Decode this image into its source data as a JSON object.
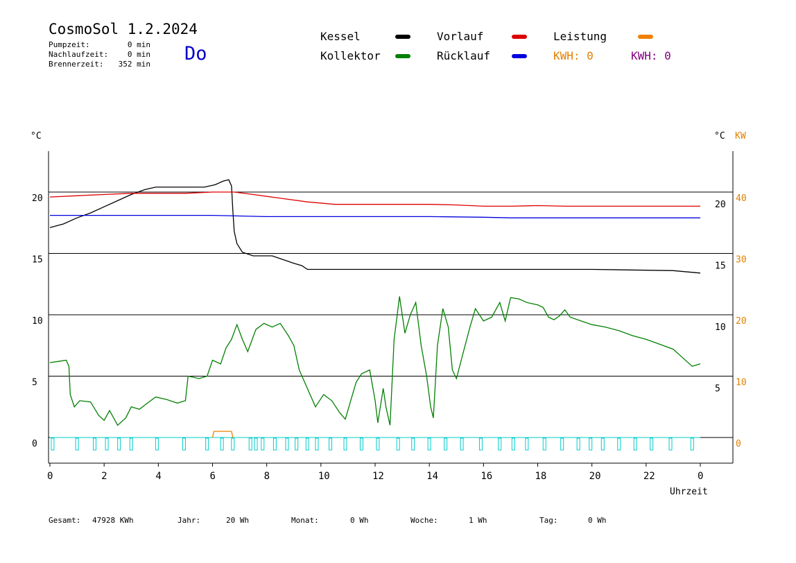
{
  "header": {
    "title": "CosmoSol 1.2.2024",
    "stats": [
      {
        "label": "Pumpzeit:",
        "value": "0 min"
      },
      {
        "label": "Nachlaufzeit:",
        "value": "0 min"
      },
      {
        "label": "Brennerzeit:",
        "value": "352 min"
      }
    ],
    "day": "Do"
  },
  "legend": {
    "items": [
      {
        "label": "Kessel",
        "color": "#000000"
      },
      {
        "label": "Vorlauf",
        "color": "#dd0000"
      },
      {
        "label": "Leistung",
        "color": "#f08000"
      },
      {
        "label": "Kollektor",
        "color": "#008000"
      },
      {
        "label": "Rücklauf",
        "color": "#0000dd"
      }
    ],
    "kwh1": "KWH: 0",
    "kwh1_color": "#e08000",
    "kwh2": "KWH: 0",
    "kwh2_color": "#800080"
  },
  "axes": {
    "left_unit": "°C",
    "right_unit": "°C",
    "right_unit2": "KW",
    "xlabel": "Uhrzeit"
  },
  "footer": [
    {
      "label": "Gesamt:",
      "value": "47928 KWh"
    },
    {
      "label": "Jahr:",
      "value": "20 Wh"
    },
    {
      "label": "Monat:",
      "value": "0 Wh"
    },
    {
      "label": "Woche:",
      "value": "1 Wh"
    },
    {
      "label": "Tag:",
      "value": "0 Wh"
    }
  ],
  "chart_data": {
    "type": "line",
    "xlabel": "Uhrzeit",
    "ylabel": "°C",
    "xlim": [
      0,
      24
    ],
    "ylim": [
      -2,
      23.5
    ],
    "y2lim": [
      -4,
      47
    ],
    "x_ticks": [
      "0",
      "2",
      "4",
      "6",
      "8",
      "10",
      "12",
      "14",
      "16",
      "18",
      "20",
      "22",
      "0"
    ],
    "y_ticks_left": [
      0,
      5,
      10,
      15,
      20
    ],
    "y_ticks_right_temp": [
      5,
      10,
      15,
      20
    ],
    "y_ticks_right_kw": [
      0,
      10,
      20,
      30,
      40
    ],
    "grid": "horizontal",
    "series": [
      {
        "name": "Kessel",
        "color": "#000000",
        "points": [
          [
            0,
            17.1
          ],
          [
            0.5,
            17.4
          ],
          [
            1,
            17.9
          ],
          [
            1.5,
            18.3
          ],
          [
            2,
            18.8
          ],
          [
            2.5,
            19.3
          ],
          [
            3,
            19.8
          ],
          [
            3.5,
            20.2
          ],
          [
            3.9,
            20.4
          ],
          [
            5.7,
            20.4
          ],
          [
            6.1,
            20.6
          ],
          [
            6.4,
            20.9
          ],
          [
            6.6,
            21.0
          ],
          [
            6.7,
            20.5
          ],
          [
            6.75,
            18.5
          ],
          [
            6.8,
            16.8
          ],
          [
            6.9,
            15.8
          ],
          [
            7.1,
            15.1
          ],
          [
            7.5,
            14.8
          ],
          [
            8.2,
            14.8
          ],
          [
            8.6,
            14.5
          ],
          [
            9,
            14.2
          ],
          [
            9.3,
            14.0
          ],
          [
            9.5,
            13.7
          ],
          [
            12,
            13.7
          ],
          [
            16,
            13.7
          ],
          [
            20,
            13.7
          ],
          [
            23,
            13.6
          ],
          [
            24,
            13.4
          ]
        ]
      },
      {
        "name": "Vorlauf",
        "color": "#dd0000",
        "points": [
          [
            0,
            19.6
          ],
          [
            1,
            19.7
          ],
          [
            2,
            19.8
          ],
          [
            3,
            19.9
          ],
          [
            4,
            19.9
          ],
          [
            5,
            19.9
          ],
          [
            6,
            20.0
          ],
          [
            6.8,
            20.0
          ],
          [
            7.5,
            19.8
          ],
          [
            8.5,
            19.5
          ],
          [
            9.5,
            19.2
          ],
          [
            10.5,
            19.0
          ],
          [
            12,
            19.0
          ],
          [
            14,
            19.0
          ],
          [
            15,
            18.95
          ],
          [
            16,
            18.85
          ],
          [
            17,
            18.85
          ],
          [
            18,
            18.9
          ],
          [
            19,
            18.85
          ],
          [
            20,
            18.85
          ],
          [
            22,
            18.85
          ],
          [
            24,
            18.85
          ]
        ]
      },
      {
        "name": "Rücklauf",
        "color": "#0000dd",
        "points": [
          [
            0,
            18.1
          ],
          [
            2,
            18.1
          ],
          [
            4,
            18.1
          ],
          [
            6,
            18.1
          ],
          [
            7,
            18.05
          ],
          [
            8,
            18.0
          ],
          [
            10,
            18.0
          ],
          [
            12,
            18.0
          ],
          [
            14,
            18.0
          ],
          [
            16,
            17.95
          ],
          [
            17,
            17.9
          ],
          [
            18,
            17.9
          ],
          [
            20,
            17.9
          ],
          [
            24,
            17.9
          ]
        ]
      },
      {
        "name": "Kollektor",
        "color": "#008000",
        "points": [
          [
            0,
            6.1
          ],
          [
            0.3,
            6.2
          ],
          [
            0.6,
            6.3
          ],
          [
            0.7,
            5.8
          ],
          [
            0.75,
            3.5
          ],
          [
            0.9,
            2.5
          ],
          [
            1.1,
            3.0
          ],
          [
            1.5,
            2.9
          ],
          [
            1.8,
            1.8
          ],
          [
            2.0,
            1.4
          ],
          [
            2.2,
            2.2
          ],
          [
            2.5,
            1.0
          ],
          [
            2.8,
            1.6
          ],
          [
            3.0,
            2.5
          ],
          [
            3.3,
            2.3
          ],
          [
            3.6,
            2.8
          ],
          [
            3.9,
            3.3
          ],
          [
            4.3,
            3.1
          ],
          [
            4.7,
            2.8
          ],
          [
            5.0,
            3.0
          ],
          [
            5.1,
            5.0
          ],
          [
            5.5,
            4.8
          ],
          [
            5.8,
            5.0
          ],
          [
            6.0,
            6.3
          ],
          [
            6.3,
            6.0
          ],
          [
            6.5,
            7.3
          ],
          [
            6.7,
            8.0
          ],
          [
            6.9,
            9.2
          ],
          [
            7.1,
            8.0
          ],
          [
            7.3,
            7.0
          ],
          [
            7.6,
            8.8
          ],
          [
            7.9,
            9.3
          ],
          [
            8.2,
            9.0
          ],
          [
            8.5,
            9.3
          ],
          [
            8.8,
            8.3
          ],
          [
            9.0,
            7.5
          ],
          [
            9.2,
            5.5
          ],
          [
            9.5,
            4.0
          ],
          [
            9.8,
            2.5
          ],
          [
            10.1,
            3.5
          ],
          [
            10.4,
            3.0
          ],
          [
            10.7,
            2.0
          ],
          [
            10.9,
            1.5
          ],
          [
            11.1,
            3.0
          ],
          [
            11.3,
            4.5
          ],
          [
            11.5,
            5.2
          ],
          [
            11.8,
            5.5
          ],
          [
            12.0,
            3.0
          ],
          [
            12.1,
            1.2
          ],
          [
            12.3,
            4.0
          ],
          [
            12.4,
            2.5
          ],
          [
            12.55,
            1.0
          ],
          [
            12.7,
            8.0
          ],
          [
            12.9,
            11.5
          ],
          [
            13.1,
            8.5
          ],
          [
            13.3,
            10.0
          ],
          [
            13.5,
            11.0
          ],
          [
            13.7,
            7.5
          ],
          [
            13.9,
            5.0
          ],
          [
            14.05,
            2.5
          ],
          [
            14.15,
            1.6
          ],
          [
            14.3,
            7.5
          ],
          [
            14.5,
            10.5
          ],
          [
            14.7,
            9.0
          ],
          [
            14.85,
            5.5
          ],
          [
            15.0,
            4.8
          ],
          [
            15.2,
            6.5
          ],
          [
            15.5,
            9.0
          ],
          [
            15.7,
            10.5
          ],
          [
            16.0,
            9.5
          ],
          [
            16.3,
            9.8
          ],
          [
            16.6,
            11.0
          ],
          [
            16.8,
            9.5
          ],
          [
            17.0,
            11.4
          ],
          [
            17.3,
            11.3
          ],
          [
            17.6,
            11.0
          ],
          [
            18.0,
            10.8
          ],
          [
            18.2,
            10.6
          ],
          [
            18.4,
            9.8
          ],
          [
            18.6,
            9.6
          ],
          [
            18.8,
            9.9
          ],
          [
            19.0,
            10.4
          ],
          [
            19.2,
            9.8
          ],
          [
            19.6,
            9.5
          ],
          [
            20.0,
            9.2
          ],
          [
            20.5,
            9.0
          ],
          [
            21.0,
            8.7
          ],
          [
            21.5,
            8.3
          ],
          [
            22.0,
            8.0
          ],
          [
            22.5,
            7.6
          ],
          [
            23.0,
            7.2
          ],
          [
            23.3,
            6.6
          ],
          [
            23.5,
            6.2
          ],
          [
            23.7,
            5.8
          ],
          [
            24,
            6.0
          ]
        ]
      },
      {
        "name": "Leistung",
        "color": "#f08000",
        "points": [
          [
            6.0,
            0.0
          ],
          [
            6.05,
            0.5
          ],
          [
            6.7,
            0.5
          ],
          [
            6.75,
            0.0
          ]
        ]
      }
    ],
    "pulses_color": "#00cccc",
    "pulses_x": [
      0.1,
      1.0,
      1.65,
      2.1,
      2.55,
      3.0,
      3.95,
      4.95,
      5.8,
      6.35,
      6.75,
      7.4,
      7.6,
      7.85,
      8.3,
      8.75,
      9.1,
      9.5,
      9.85,
      10.35,
      10.9,
      11.5,
      12.1,
      12.85,
      13.4,
      14.0,
      14.6,
      15.2,
      15.9,
      16.6,
      17.1,
      17.6,
      18.25,
      18.9,
      19.5,
      19.95,
      20.4,
      21.0,
      21.6,
      22.2,
      22.9,
      23.7
    ]
  }
}
